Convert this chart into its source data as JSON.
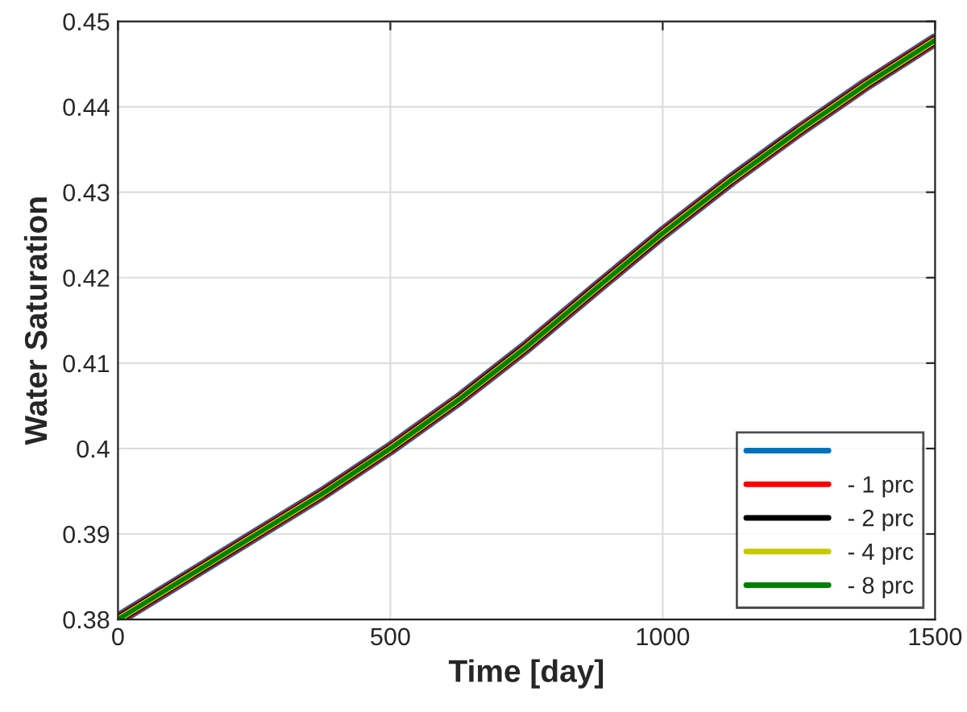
{
  "chart_data": {
    "type": "line",
    "xlabel": "Time [day]",
    "ylabel": "Water Saturation",
    "x": [
      0,
      125,
      250,
      375,
      500,
      625,
      750,
      875,
      1000,
      1125,
      1250,
      1375,
      1500
    ],
    "series": [
      {
        "color": "#0072bd",
        "values": [
          0.38,
          0.3849,
          0.3898,
          0.3947,
          0.4,
          0.4057,
          0.4119,
          0.4186,
          0.4252,
          0.4314,
          0.4372,
          0.4427,
          0.4478
        ]
      },
      {
        "name": "- 1 prc",
        "color": "#ff0000",
        "values": [
          0.38,
          0.3849,
          0.3898,
          0.3947,
          0.4,
          0.4057,
          0.4119,
          0.4186,
          0.4252,
          0.4314,
          0.4372,
          0.4427,
          0.4478
        ]
      },
      {
        "name": "- 2 prc",
        "color": "#000000",
        "values": [
          0.38,
          0.3849,
          0.3898,
          0.3947,
          0.4,
          0.4057,
          0.4119,
          0.4186,
          0.4252,
          0.4314,
          0.4372,
          0.4427,
          0.4478
        ]
      },
      {
        "name": "- 4 prc",
        "color": "#c8c800",
        "values": [
          0.38,
          0.3849,
          0.3898,
          0.3947,
          0.4,
          0.4057,
          0.4119,
          0.4186,
          0.4252,
          0.4314,
          0.4372,
          0.4427,
          0.4478
        ]
      },
      {
        "name": "- 8 prc",
        "color": "#008000",
        "values": [
          0.38,
          0.3849,
          0.3898,
          0.3947,
          0.4,
          0.4057,
          0.4119,
          0.4186,
          0.4252,
          0.4314,
          0.4372,
          0.4427,
          0.4478
        ]
      }
    ],
    "xlim": [
      0,
      1500
    ],
    "xticks": [
      0,
      500,
      1000,
      1500
    ],
    "ylim": [
      0.38,
      0.45
    ],
    "yticks": [
      0.38,
      0.39,
      0.4,
      0.41,
      0.42,
      0.43,
      0.44,
      0.45
    ],
    "grid": true,
    "legend": "bottom right",
    "line_style": "solid"
  }
}
